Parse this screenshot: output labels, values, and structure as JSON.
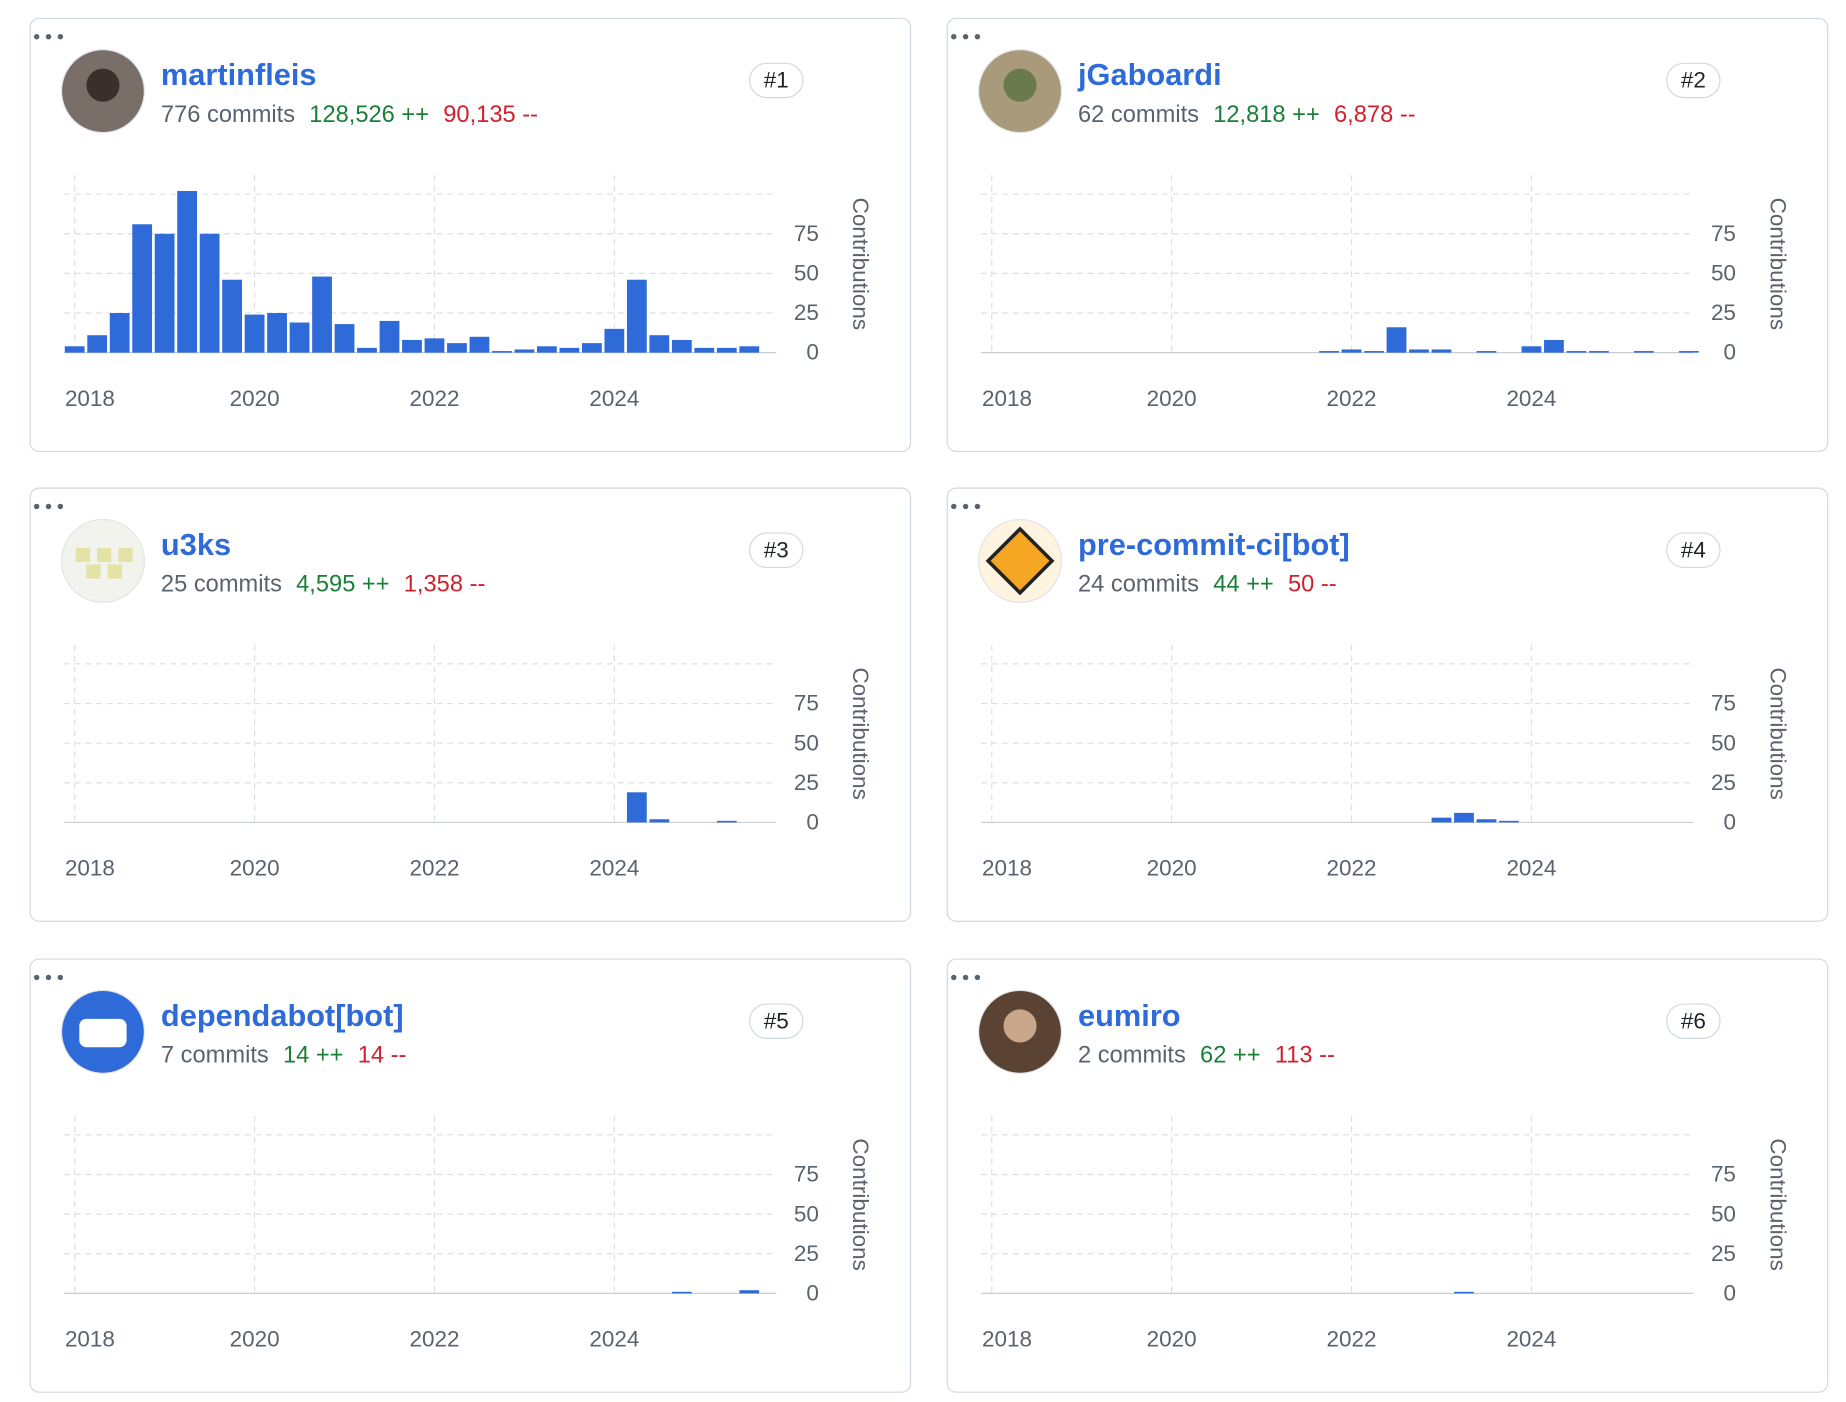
{
  "contributors": [
    {
      "name": "martinfleis",
      "commits": "776 commits",
      "additions": "128,526 ++",
      "deletions": "90,135 --",
      "rank": "#1",
      "chart": {
        "type": "bar",
        "ylabel": "Contributions",
        "color": "#2f6bd8",
        "x": [
          2018,
          2018.25,
          2018.5,
          2018.75,
          2019,
          2019.25,
          2019.5,
          2019.75,
          2020,
          2020.25,
          2020.5,
          2020.75,
          2021,
          2021.25,
          2021.5,
          2021.75,
          2022,
          2022.25,
          2022.5,
          2022.75,
          2023,
          2023.25,
          2023.5,
          2023.75,
          2024,
          2024.25,
          2024.5,
          2024.75,
          2025,
          2025.25,
          2025.5
        ],
        "values": [
          4,
          11,
          25,
          81,
          75,
          102,
          75,
          46,
          24,
          25,
          19,
          48,
          18,
          3,
          20,
          8,
          9,
          6,
          10,
          1,
          2,
          4,
          3,
          6,
          15,
          46,
          11,
          8,
          3,
          3,
          4
        ],
        "xlim": [
          2017.88,
          2025.8
        ],
        "ylim": [
          0,
          112
        ],
        "xticks": [
          2018,
          2020,
          2022,
          2024
        ],
        "yticks": [
          0,
          25,
          50,
          75
        ]
      }
    },
    {
      "name": "jGaboardi",
      "commits": "62 commits",
      "additions": "12,818 ++",
      "deletions": "6,878 --",
      "rank": "#2",
      "chart": {
        "type": "bar",
        "ylabel": "Contributions",
        "color": "#2f6bd8",
        "x": [
          2021.75,
          2022,
          2022.25,
          2022.5,
          2022.75,
          2023,
          2023.5,
          2024,
          2024.25,
          2024.5,
          2024.75,
          2025.25,
          2025.75
        ],
        "values": [
          1,
          2,
          1,
          16,
          2,
          2,
          1,
          4,
          8,
          1,
          1,
          1,
          1
        ],
        "xlim": [
          2017.88,
          2025.8
        ],
        "ylim": [
          0,
          112
        ],
        "xticks": [
          2018,
          2020,
          2022,
          2024
        ],
        "yticks": [
          0,
          25,
          50,
          75
        ]
      }
    },
    {
      "name": "u3ks",
      "commits": "25 commits",
      "additions": "4,595 ++",
      "deletions": "1,358 --",
      "rank": "#3",
      "chart": {
        "type": "bar",
        "ylabel": "Contributions",
        "color": "#2f6bd8",
        "x": [
          2024.25,
          2024.5,
          2025.25
        ],
        "values": [
          19,
          2,
          1
        ],
        "xlim": [
          2017.88,
          2025.8
        ],
        "ylim": [
          0,
          112
        ],
        "xticks": [
          2018,
          2020,
          2022,
          2024
        ],
        "yticks": [
          0,
          25,
          50,
          75
        ]
      }
    },
    {
      "name": "pre-commit-ci[bot]",
      "commits": "24 commits",
      "additions": "44 ++",
      "deletions": "50 --",
      "rank": "#4",
      "chart": {
        "type": "bar",
        "ylabel": "Contributions",
        "color": "#2f6bd8",
        "x": [
          2023,
          2023.25,
          2023.5,
          2023.75
        ],
        "values": [
          3,
          6,
          2,
          1
        ],
        "xlim": [
          2017.88,
          2025.8
        ],
        "ylim": [
          0,
          112
        ],
        "xticks": [
          2018,
          2020,
          2022,
          2024
        ],
        "yticks": [
          0,
          25,
          50,
          75
        ]
      }
    },
    {
      "name": "dependabot[bot]",
      "commits": "7 commits",
      "additions": "14 ++",
      "deletions": "14 --",
      "rank": "#5",
      "chart": {
        "type": "bar",
        "ylabel": "Contributions",
        "color": "#2f6bd8",
        "x": [
          2024.75,
          2025.5
        ],
        "values": [
          1,
          2
        ],
        "xlim": [
          2017.88,
          2025.8
        ],
        "ylim": [
          0,
          112
        ],
        "xticks": [
          2018,
          2020,
          2022,
          2024
        ],
        "yticks": [
          0,
          25,
          50,
          75
        ]
      }
    },
    {
      "name": "eumiro",
      "commits": "2 commits",
      "additions": "62 ++",
      "deletions": "113 --",
      "rank": "#6",
      "chart": {
        "type": "bar",
        "ylabel": "Contributions",
        "color": "#2f6bd8",
        "x": [
          2023.25
        ],
        "values": [
          1
        ],
        "xlim": [
          2017.88,
          2025.8
        ],
        "ylim": [
          0,
          112
        ],
        "xticks": [
          2018,
          2020,
          2022,
          2024
        ],
        "yticks": [
          0,
          25,
          50,
          75
        ]
      }
    }
  ]
}
